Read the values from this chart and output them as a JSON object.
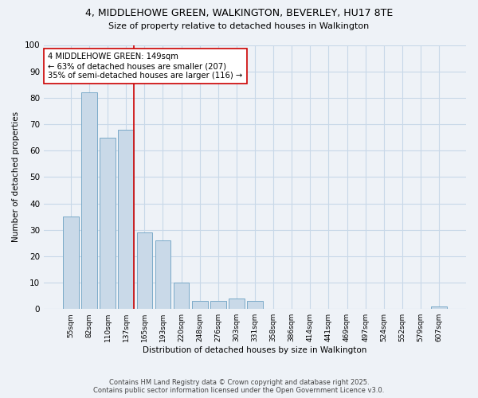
{
  "title_line1": "4, MIDDLEHOWE GREEN, WALKINGTON, BEVERLEY, HU17 8TE",
  "title_line2": "Size of property relative to detached houses in Walkington",
  "xlabel": "Distribution of detached houses by size in Walkington",
  "ylabel": "Number of detached properties",
  "categories": [
    "55sqm",
    "82sqm",
    "110sqm",
    "137sqm",
    "165sqm",
    "193sqm",
    "220sqm",
    "248sqm",
    "276sqm",
    "303sqm",
    "331sqm",
    "358sqm",
    "386sqm",
    "414sqm",
    "441sqm",
    "469sqm",
    "497sqm",
    "524sqm",
    "552sqm",
    "579sqm",
    "607sqm"
  ],
  "values": [
    35,
    82,
    65,
    68,
    29,
    26,
    10,
    3,
    3,
    4,
    3,
    0,
    0,
    0,
    0,
    0,
    0,
    0,
    0,
    0,
    1
  ],
  "bar_color": "#c9d9e8",
  "bar_edge_color": "#7aaac8",
  "grid_color": "#c8d8e8",
  "background_color": "#eef2f7",
  "vline_color": "#cc0000",
  "vline_x": 3.42,
  "annotation_text": "4 MIDDLEHOWE GREEN: 149sqm\n← 63% of detached houses are smaller (207)\n35% of semi-detached houses are larger (116) →",
  "annotation_box_color": "#ffffff",
  "annotation_box_edge": "#cc0000",
  "ylim": [
    0,
    100
  ],
  "yticks": [
    0,
    10,
    20,
    30,
    40,
    50,
    60,
    70,
    80,
    90,
    100
  ],
  "footer_line1": "Contains HM Land Registry data © Crown copyright and database right 2025.",
  "footer_line2": "Contains public sector information licensed under the Open Government Licence v3.0."
}
